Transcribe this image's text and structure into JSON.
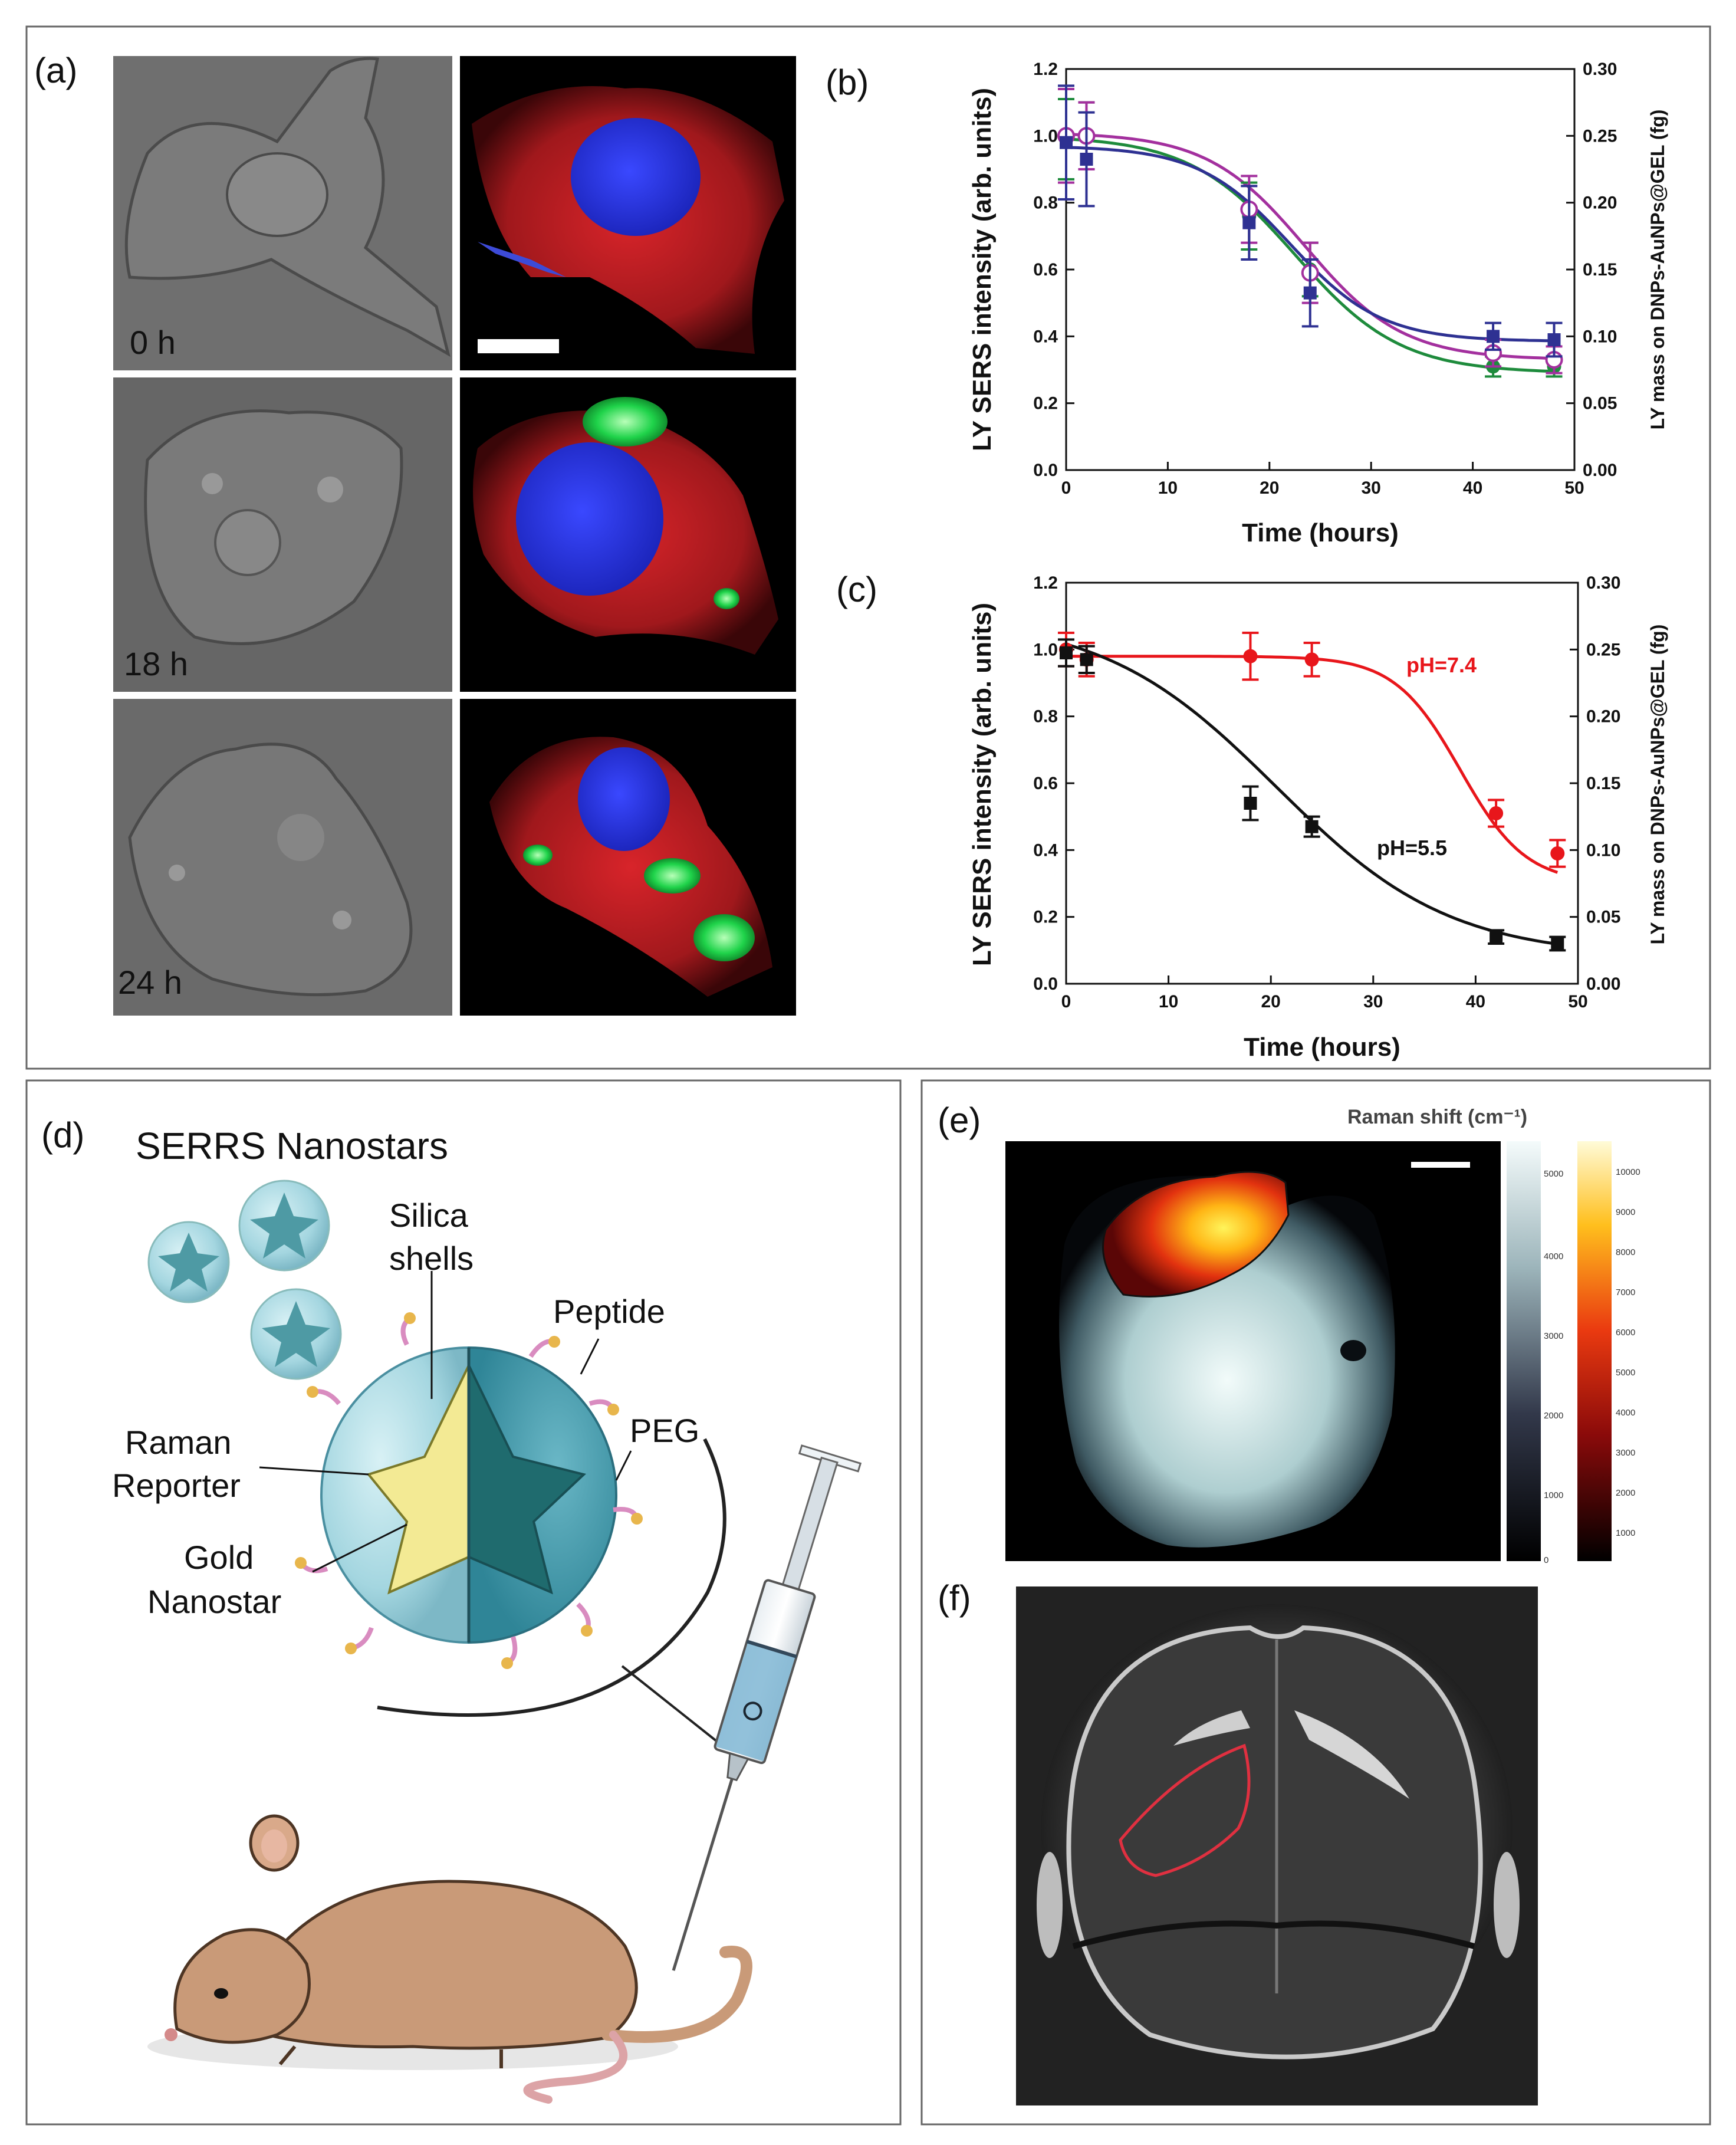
{
  "panels": {
    "a": "(a)",
    "b": "(b)",
    "c": "(c)",
    "d": "(d)",
    "e": "(e)",
    "f": "(f)"
  },
  "panel_a": {
    "timepoints": [
      "0 h",
      "18 h",
      "24 h"
    ]
  },
  "panel_d": {
    "title": "SERRS Nanostars",
    "labels": {
      "silica_1": "Silica",
      "silica_2": "shells",
      "peptide": "Peptide",
      "peg": "PEG",
      "raman_1": "Raman",
      "raman_2": "Reporter",
      "gold_1": "Gold",
      "gold_2": "Nanostar"
    }
  },
  "panel_e": {
    "title": "Raman shift (cm⁻¹)",
    "colorbar_gray_ticks": [
      "5000",
      "4000",
      "3000",
      "2000",
      "1000",
      "0"
    ],
    "colorbar_hot_ticks": [
      "10000",
      "9000",
      "8000",
      "7000",
      "6000",
      "5000",
      "4000",
      "3000",
      "2000",
      "1000"
    ]
  },
  "colors": {
    "green": "#1e8b3c",
    "purple": "#a3309e",
    "blue": "#2e3192",
    "red": "#e8161b",
    "black": "#111111"
  },
  "chart_data": [
    {
      "type": "line",
      "panel": "b",
      "xlabel": "Time (hours)",
      "ylabel": "LY SERS intensity (arb. units)",
      "y2label": "LY mass on DNPs-AuNPs@GEL (fg)",
      "xlim": [
        0,
        50
      ],
      "ylim": [
        0,
        1.2
      ],
      "y2lim": [
        0,
        0.3
      ],
      "xticks": [
        "0",
        "10",
        "20",
        "30",
        "40",
        "50"
      ],
      "yticks": [
        "0.0",
        "0.2",
        "0.4",
        "0.6",
        "0.8",
        "1.0",
        "1.2"
      ],
      "y2ticks": [
        "0.00",
        "0.05",
        "0.10",
        "0.15",
        "0.20",
        "0.25",
        "0.30"
      ],
      "series": [
        {
          "color": "#1e8b3c",
          "marker": "circle-filled",
          "points": [
            [
              0,
              0.99,
              0.12
            ],
            [
              2,
              1.0,
              0.1
            ],
            [
              18,
              0.76,
              0.1
            ],
            [
              24,
              0.6,
              0.08
            ],
            [
              42,
              0.31,
              0.03
            ],
            [
              48,
              0.31,
              0.03
            ]
          ],
          "fit": {
            "top": 1.0,
            "bottom": 0.29,
            "x0": 22.5,
            "k": 5.2
          }
        },
        {
          "color": "#a3309e",
          "marker": "circle-open",
          "points": [
            [
              0,
              1.0,
              0.14
            ],
            [
              2,
              1.0,
              0.1
            ],
            [
              18,
              0.78,
              0.1
            ],
            [
              24,
              0.59,
              0.09
            ],
            [
              42,
              0.35,
              0.04
            ],
            [
              48,
              0.33,
              0.04
            ]
          ],
          "fit": {
            "top": 1.01,
            "bottom": 0.33,
            "x0": 23.5,
            "k": 4.8
          }
        },
        {
          "color": "#2e3192",
          "marker": "square-filled",
          "points": [
            [
              0,
              0.98,
              0.17
            ],
            [
              2,
              0.93,
              0.14
            ],
            [
              18,
              0.74,
              0.11
            ],
            [
              24,
              0.53,
              0.1
            ],
            [
              42,
              0.4,
              0.04
            ],
            [
              48,
              0.39,
              0.05
            ]
          ],
          "fit": {
            "top": 0.97,
            "bottom": 0.385,
            "x0": 22.0,
            "k": 4.5
          }
        }
      ]
    },
    {
      "type": "line",
      "panel": "c",
      "xlabel": "Time (hours)",
      "ylabel": "LY SERS intensity (arb. units)",
      "y2label": "LY mass on DNPs-AuNPs@GEL (fg)",
      "xlim": [
        0,
        50
      ],
      "ylim": [
        0,
        1.2
      ],
      "y2lim": [
        0,
        0.3
      ],
      "xticks": [
        "0",
        "10",
        "20",
        "30",
        "40",
        "50"
      ],
      "yticks": [
        "0.0",
        "0.2",
        "0.4",
        "0.6",
        "0.8",
        "1.0",
        "1.2"
      ],
      "y2ticks": [
        "0.00",
        "0.05",
        "0.10",
        "0.15",
        "0.20",
        "0.25",
        "0.30"
      ],
      "series": [
        {
          "name": "pH=7.4",
          "color": "#e8161b",
          "marker": "circle-filled",
          "points": [
            [
              0,
              1.0,
              0.05
            ],
            [
              2,
              0.97,
              0.05
            ],
            [
              18,
              0.98,
              0.07
            ],
            [
              24,
              0.97,
              0.05
            ],
            [
              42,
              0.51,
              0.04
            ],
            [
              48,
              0.39,
              0.04
            ]
          ],
          "fit": {
            "top": 0.98,
            "bottom": 0.3,
            "x0": 38.5,
            "k": 3.2
          }
        },
        {
          "name": "pH=5.5",
          "color": "#111111",
          "marker": "square-filled",
          "points": [
            [
              0,
              0.99,
              0.04
            ],
            [
              2,
              0.97,
              0.04
            ],
            [
              18,
              0.54,
              0.05
            ],
            [
              24,
              0.47,
              0.03
            ],
            [
              42,
              0.14,
              0.02
            ],
            [
              48,
              0.12,
              0.02
            ]
          ],
          "fit": {
            "top": 1.1,
            "bottom": 0.08,
            "x0": 20.5,
            "k": 8.5
          }
        }
      ]
    }
  ]
}
